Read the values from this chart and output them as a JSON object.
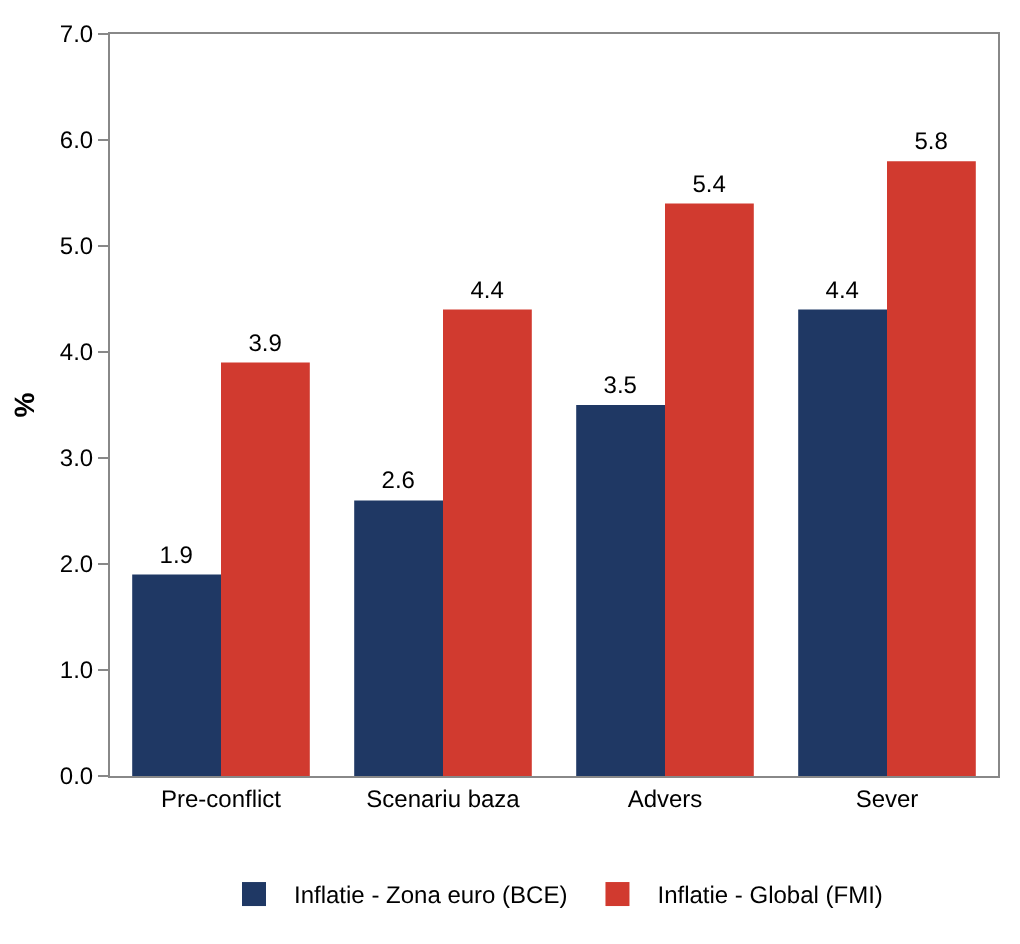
{
  "chart_data": {
    "type": "bar",
    "ylabel": "%",
    "categories": [
      "Pre-conflict",
      "Scenariu baza",
      "Advers",
      "Sever"
    ],
    "series": [
      {
        "name": "Inflatie - Zona euro (BCE)",
        "color": "#1f3864",
        "values": [
          1.9,
          2.6,
          3.5,
          4.4
        ]
      },
      {
        "name": "Inflatie - Global (FMI)",
        "color": "#d13a2f",
        "values": [
          3.9,
          4.4,
          5.4,
          5.8
        ]
      }
    ],
    "ylim": [
      0,
      7
    ],
    "yticks": [
      {
        "value": 0,
        "label": "0.0"
      },
      {
        "value": 1,
        "label": "1.0"
      },
      {
        "value": 2,
        "label": "2.0"
      },
      {
        "value": 3,
        "label": "3.0"
      },
      {
        "value": 4,
        "label": "4.0"
      },
      {
        "value": 5,
        "label": "5.0"
      },
      {
        "value": 6,
        "label": "6.0"
      },
      {
        "value": 7,
        "label": "7.0"
      }
    ],
    "grid": false,
    "legend": "bottom",
    "data_labels": true
  }
}
